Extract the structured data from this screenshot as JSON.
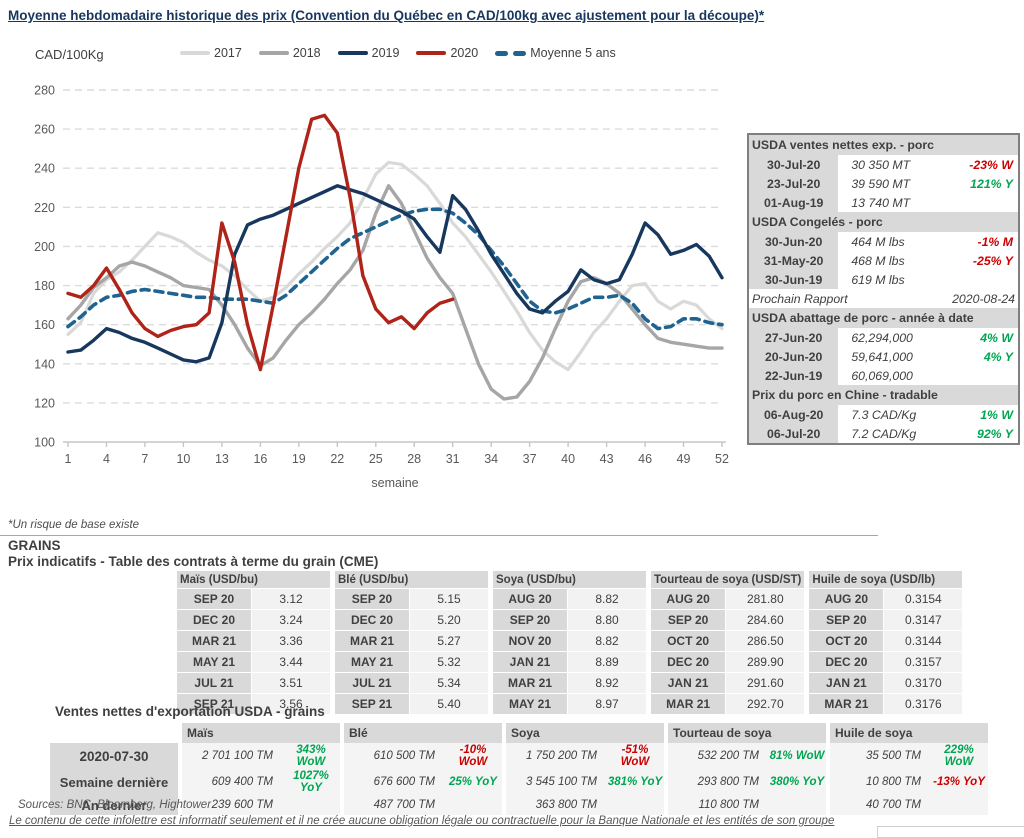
{
  "page": {
    "title": "Moyenne hebdomadaire historique des prix (Convention du Québec en CAD/100kg avec ajustement pour la découpe)*",
    "axis_unit": "CAD/100Kg",
    "risk_note": "*Un risque de base existe",
    "grains_heading": "GRAINS",
    "futures_heading": "Prix indicatifs - Table des contrats à terme du grain (CME)",
    "export_heading": "Ventes nettes d'exportation USDA - grains",
    "sources": "Sources: BNC, Bloomberg, Hightower",
    "disclaimer": "Le contenu de cette infolettre est informatif seulement et il ne crée aucune obligation légale ou contractuelle pour la Banque Nationale et les entités de son groupe"
  },
  "colors": {
    "navy": "#17375e",
    "red_2020": "#b02318",
    "gray_2018": "#a6a6a6",
    "light_gray_2017": "#d9d9d9",
    "avg_blue": "#1f6391",
    "positive": "#00a651",
    "negative": "#cc0000",
    "table_header_bg": "#d9d9d9",
    "table_cell_bg": "#f2f2f2"
  },
  "chart_data": {
    "type": "line",
    "xlabel": "semaine",
    "ylabel": "CAD/100Kg",
    "ylim": [
      100,
      280
    ],
    "ytick_step": 20,
    "xticks": [
      1,
      4,
      7,
      10,
      13,
      16,
      19,
      22,
      25,
      28,
      31,
      34,
      37,
      40,
      43,
      46,
      49,
      52
    ],
    "grid": true,
    "legend_position": "top",
    "legend_order": [
      "2017",
      "2018",
      "2019",
      "2020",
      "Moyenne 5 ans"
    ],
    "series": [
      {
        "name": "2017",
        "color": "#d9d9d9",
        "w": 3.2,
        "values": [
          155,
          161,
          176,
          183,
          187,
          193,
          200,
          207,
          205,
          202,
          197,
          193,
          190,
          185,
          178,
          172,
          174,
          179,
          186,
          192,
          199,
          205,
          212,
          224,
          237,
          243,
          242,
          237,
          231,
          222,
          212,
          205,
          196,
          187,
          177,
          167,
          156,
          147,
          141,
          137,
          146,
          156,
          163,
          172,
          180,
          181,
          172,
          168,
          172,
          170,
          163,
          158
        ]
      },
      {
        "name": "2018",
        "color": "#a6a6a6",
        "w": 3.4,
        "values": [
          163,
          170,
          179,
          184,
          190,
          192,
          190,
          187,
          184,
          180,
          179,
          178,
          170,
          160,
          148,
          139,
          143,
          152,
          160,
          166,
          173,
          181,
          188,
          198,
          217,
          231,
          222,
          208,
          194,
          184,
          176,
          158,
          140,
          127,
          122,
          123,
          131,
          143,
          158,
          172,
          182,
          184,
          181,
          176,
          168,
          160,
          153,
          151,
          150,
          149,
          148,
          148
        ]
      },
      {
        "name": "Moyenne 5 ans",
        "color": "#1f6391",
        "w": 3.6,
        "dash": "8,6",
        "values": [
          159,
          164,
          170,
          174,
          175,
          177,
          178,
          177,
          176,
          175,
          174,
          174,
          173,
          173,
          173,
          172,
          171,
          175,
          181,
          187,
          193,
          199,
          204,
          207,
          210,
          213,
          216,
          218,
          219,
          219,
          217,
          212,
          206,
          198,
          190,
          181,
          172,
          167,
          166,
          168,
          171,
          174,
          174,
          175,
          171,
          163,
          158,
          159,
          163,
          163,
          161,
          160
        ]
      },
      {
        "name": "2019",
        "color": "#17375e",
        "w": 3.4,
        "values": [
          146,
          147,
          152,
          158,
          156,
          153,
          151,
          148,
          145,
          142,
          141,
          143,
          161,
          196,
          211,
          214,
          216,
          219,
          222,
          225,
          228,
          231,
          229,
          227,
          224,
          221,
          218,
          214,
          205,
          197,
          226,
          219,
          208,
          196,
          186,
          176,
          168,
          166,
          172,
          177,
          188,
          183,
          181,
          183,
          196,
          212,
          206,
          196,
          198,
          201,
          195,
          184
        ]
      },
      {
        "name": "2020",
        "color": "#b02318",
        "w": 3.4,
        "values": [
          176,
          174,
          180,
          189,
          178,
          166,
          158,
          154,
          157,
          159,
          160,
          166,
          212,
          192,
          160,
          137,
          170,
          205,
          240,
          265,
          267,
          258,
          225,
          185,
          168,
          161,
          164,
          158,
          166,
          171,
          173,
          null,
          null,
          null,
          null,
          null,
          null,
          null,
          null,
          null,
          null,
          null,
          null,
          null,
          null,
          null,
          null,
          null,
          null,
          null,
          null,
          null
        ]
      }
    ]
  },
  "pork_panel": {
    "rows": [
      {
        "type": "header",
        "label": "USDA ventes nettes exp. - porc"
      },
      {
        "type": "data",
        "date": "30-Jul-20",
        "value": "30 350  MT",
        "pct": "-23% W",
        "dir": "neg"
      },
      {
        "type": "data",
        "date": "23-Jul-20",
        "value": "39 590  MT",
        "pct": "121% Y",
        "dir": "pos"
      },
      {
        "type": "data",
        "date": "01-Aug-19",
        "value": "13 740  MT",
        "pct": "",
        "dir": ""
      },
      {
        "type": "header",
        "label": "USDA Congelés - porc"
      },
      {
        "type": "data",
        "date": "30-Jun-20",
        "value": "464 M lbs",
        "pct": "-1% M",
        "dir": "neg"
      },
      {
        "type": "data",
        "date": "31-May-20",
        "value": "468 M lbs",
        "pct": "-25% Y",
        "dir": "neg"
      },
      {
        "type": "data",
        "date": "30-Jun-19",
        "value": "619 M lbs",
        "pct": "",
        "dir": ""
      },
      {
        "type": "report",
        "label": "Prochain Rapport",
        "date": "2020-08-24"
      },
      {
        "type": "header",
        "label": "USDA abattage de porc - année à date"
      },
      {
        "type": "data",
        "date": "27-Jun-20",
        "value": "62,294,000",
        "pct": "4% W",
        "dir": "pos"
      },
      {
        "type": "data",
        "date": "20-Jun-20",
        "value": "59,641,000",
        "pct": "4% Y",
        "dir": "pos"
      },
      {
        "type": "data",
        "date": "22-Jun-19",
        "value": "60,069,000",
        "pct": "",
        "dir": ""
      },
      {
        "type": "header",
        "label": "Prix du porc en Chine - tradable"
      },
      {
        "type": "data",
        "date": "06-Aug-20",
        "value": "7.3 CAD/Kg",
        "pct": "1% W",
        "dir": "pos"
      },
      {
        "type": "data",
        "date": "06-Jul-20",
        "value": "7.2 CAD/Kg",
        "pct": "92% Y",
        "dir": "pos"
      }
    ]
  },
  "futures": {
    "tables": [
      {
        "title": "Maïs (USD/bu)",
        "rows": [
          [
            "SEP 20",
            "3.12"
          ],
          [
            "DEC 20",
            "3.24"
          ],
          [
            "MAR 21",
            "3.36"
          ],
          [
            "MAY 21",
            "3.44"
          ],
          [
            "JUL 21",
            "3.51"
          ],
          [
            "SEP 21",
            "3.56"
          ]
        ]
      },
      {
        "title": "Blé (USD/bu)",
        "rows": [
          [
            "SEP 20",
            "5.15"
          ],
          [
            "DEC 20",
            "5.20"
          ],
          [
            "MAR 21",
            "5.27"
          ],
          [
            "MAY 21",
            "5.32"
          ],
          [
            "JUL 21",
            "5.34"
          ],
          [
            "SEP 21",
            "5.40"
          ]
        ]
      },
      {
        "title": "Soya (USD/bu)",
        "rows": [
          [
            "AUG 20",
            "8.82"
          ],
          [
            "SEP 20",
            "8.80"
          ],
          [
            "NOV 20",
            "8.82"
          ],
          [
            "JAN 21",
            "8.89"
          ],
          [
            "MAR 21",
            "8.92"
          ],
          [
            "MAY 21",
            "8.97"
          ]
        ]
      },
      {
        "title": "Tourteau de soya (USD/ST)",
        "rows": [
          [
            "AUG 20",
            "281.80"
          ],
          [
            "SEP 20",
            "284.60"
          ],
          [
            "OCT 20",
            "286.50"
          ],
          [
            "DEC 20",
            "289.90"
          ],
          [
            "JAN 21",
            "291.60"
          ],
          [
            "MAR 21",
            "292.70"
          ]
        ]
      },
      {
        "title": "Huile de soya (USD/lb)",
        "rows": [
          [
            "AUG 20",
            "0.3154"
          ],
          [
            "SEP 20",
            "0.3147"
          ],
          [
            "OCT 20",
            "0.3144"
          ],
          [
            "DEC 20",
            "0.3157"
          ],
          [
            "JAN 21",
            "0.3170"
          ],
          [
            "MAR 21",
            "0.3176"
          ]
        ]
      }
    ]
  },
  "export_sales": {
    "row_labels": [
      "2020-07-30",
      "Semaine dernière",
      "An dernier"
    ],
    "columns": [
      {
        "name": "Maïs",
        "cells": [
          {
            "v": "2 701 100 TM",
            "p": "343% WoW",
            "d": "pos"
          },
          {
            "v": "609 400 TM",
            "p": "1027% YoY",
            "d": "pos"
          },
          {
            "v": "239 600 TM",
            "p": "",
            "d": ""
          }
        ]
      },
      {
        "name": "Blé",
        "cells": [
          {
            "v": "610 500 TM",
            "p": "-10% WoW",
            "d": "neg"
          },
          {
            "v": "676 600 TM",
            "p": "25% YoY",
            "d": "pos"
          },
          {
            "v": "487 700 TM",
            "p": "",
            "d": ""
          }
        ]
      },
      {
        "name": "Soya",
        "cells": [
          {
            "v": "1 750 200 TM",
            "p": "-51% WoW",
            "d": "neg"
          },
          {
            "v": "3 545 100 TM",
            "p": "381% YoY",
            "d": "pos"
          },
          {
            "v": "363 800 TM",
            "p": "",
            "d": ""
          }
        ]
      },
      {
        "name": "Tourteau de soya",
        "cells": [
          {
            "v": "532 200 TM",
            "p": "81% WoW",
            "d": "pos"
          },
          {
            "v": "293 800 TM",
            "p": "380% YoY",
            "d": "pos"
          },
          {
            "v": "110 800 TM",
            "p": "",
            "d": ""
          }
        ]
      },
      {
        "name": "Huile de soya",
        "cells": [
          {
            "v": "35 500 TM",
            "p": "229% WoW",
            "d": "pos"
          },
          {
            "v": "10 800 TM",
            "p": "-13% YoY",
            "d": "neg"
          },
          {
            "v": "40 700 TM",
            "p": "",
            "d": ""
          }
        ]
      }
    ]
  }
}
